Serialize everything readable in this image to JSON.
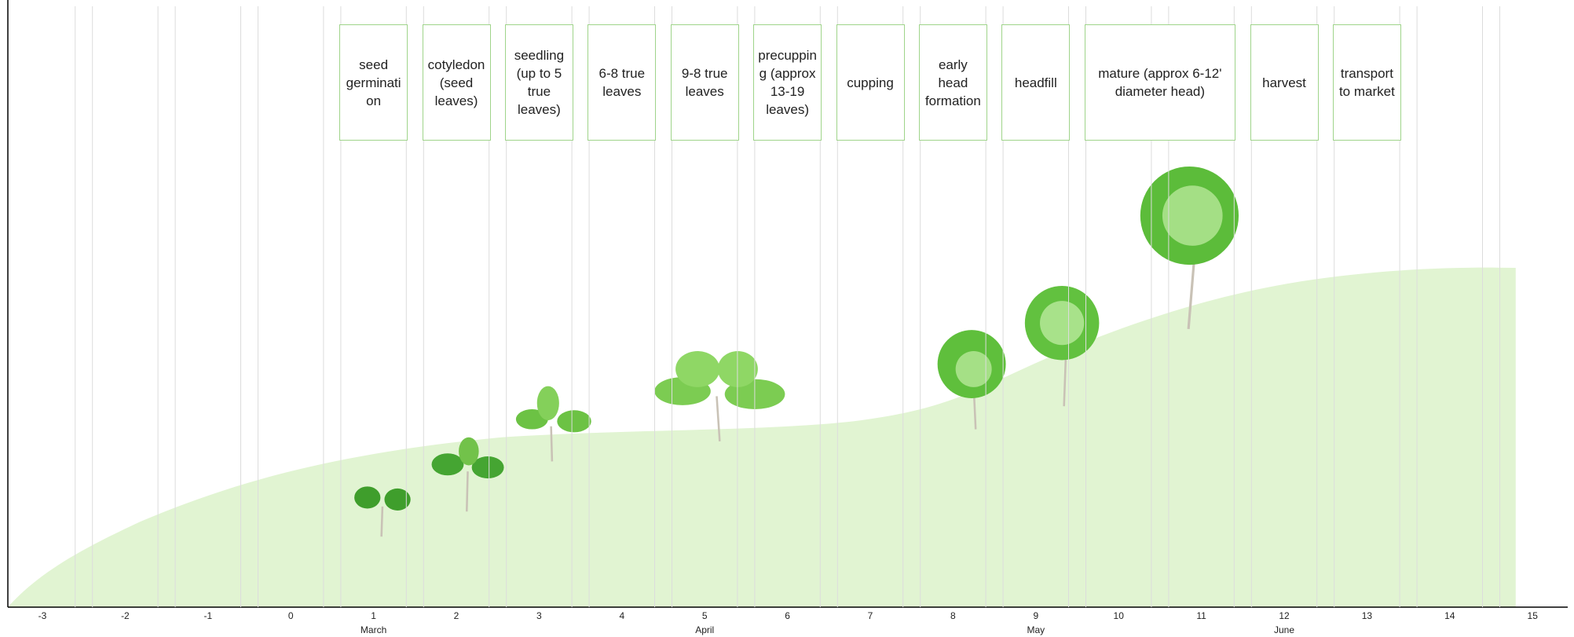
{
  "axis": {
    "ticks": [
      -3,
      -2,
      -1,
      0,
      1,
      2,
      3,
      4,
      5,
      6,
      7,
      8,
      9,
      10,
      11,
      12,
      13,
      14,
      15
    ],
    "months": [
      "March",
      "April",
      "May",
      "June"
    ]
  },
  "stages": [
    "seed germination",
    "cotyledon (seed leaves)",
    "seedling (up to 5 true leaves)",
    "6-8 true leaves",
    "9-8 true leaves",
    "precupping (approx 13-19 leaves)",
    "cupping",
    "early head formation",
    "headfill",
    "mature (approx 6-12' diameter head)",
    "harvest",
    "transport to market"
  ]
}
